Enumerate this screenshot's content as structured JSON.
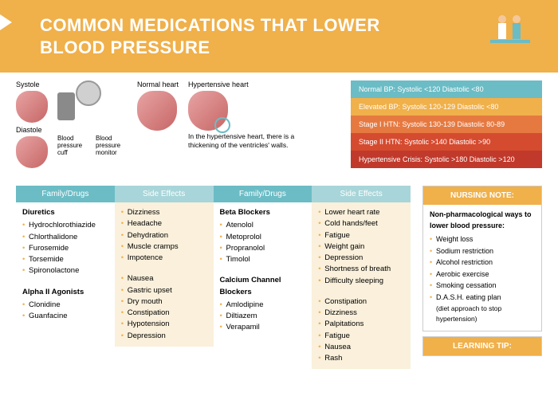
{
  "header": {
    "title_line1": "COMMON MEDICATIONS THAT LOWER",
    "title_line2": "BLOOD PRESSURE"
  },
  "hearts": {
    "systole": "Systole",
    "diastole": "Diastole",
    "normal": "Normal heart",
    "hypertensive": "Hypertensive heart",
    "cuff_label": "Blood pressure cuff",
    "monitor_label": "Blood pressure monitor",
    "caption": "In the hypertensive heart, there is a thickening of the ventricles' walls."
  },
  "bp_stages": [
    {
      "text": "Normal BP: Systolic <120 Diastolic <80",
      "color": "#6bbcc5"
    },
    {
      "text": "Elevated BP: Systolic 120-129 Diastolic <80",
      "color": "#f0b04a"
    },
    {
      "text": "Stage I HTN: Systolic 130-139 Diastolic 80-89",
      "color": "#e67940"
    },
    {
      "text": "Stage II HTN: Systolic >140 Diastolic >90",
      "color": "#d54b2f"
    },
    {
      "text": "Hypertensive Crisis: Systolic >180 Diastolic >120",
      "color": "#c0392b"
    }
  ],
  "table_headers": {
    "family": "Family/Drugs",
    "effects": "Side Effects"
  },
  "meds": {
    "col1": [
      {
        "family": "Diuretics",
        "items": [
          "Hydrochlorothiazide",
          "Chlorthalidone",
          "Furosemide",
          "Torsemide",
          "Spironolactone"
        ]
      },
      {
        "family": "Alpha II Agonists",
        "items": [
          "Clonidine",
          "Guanfacine"
        ]
      }
    ],
    "col1_effects": [
      {
        "items": [
          "Dizziness",
          "Headache",
          "Dehydration",
          "Muscle cramps",
          "Impotence"
        ]
      },
      {
        "items": [
          "Nausea",
          "Gastric upset",
          "Dry mouth",
          "Constipation",
          "Hypotension",
          "Depression"
        ]
      }
    ],
    "col2": [
      {
        "family": "Beta Blockers",
        "items": [
          "Atenolol",
          "Metoprolol",
          "Propranolol",
          "Timolol"
        ]
      },
      {
        "family": "Calcium Channel Blockers",
        "items": [
          "Amlodipine",
          "Diltiazem",
          "Verapamil"
        ]
      }
    ],
    "col2_effects": [
      {
        "items": [
          "Lower heart rate",
          "Cold hands/feet",
          "Fatigue",
          "Weight gain",
          "Depression",
          "Shortness of breath",
          "Difficulty sleeping"
        ]
      },
      {
        "items": [
          "Constipation",
          "Dizziness",
          "Palpitations",
          "Fatigue",
          "Nausea",
          "Rash"
        ]
      }
    ]
  },
  "nursing_note": {
    "header": "NURSING NOTE:",
    "title": "Non-pharmacological ways to lower blood pressure:",
    "items": [
      "Weight loss",
      "Sodium restriction",
      "Alcohol restriction",
      "Aerobic exercise",
      "Smoking cessation",
      "D.A.S.H. eating plan"
    ],
    "sub": "(diet approach to stop hypertension)"
  },
  "learning_tip": {
    "header": "LEARNING TIP:"
  }
}
